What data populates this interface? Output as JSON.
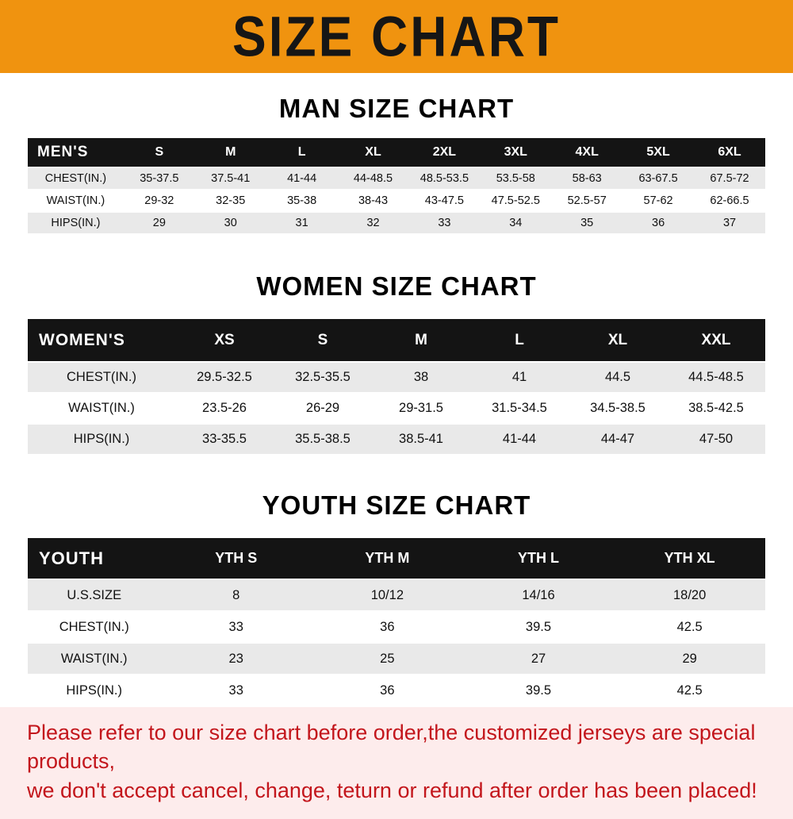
{
  "banner": {
    "title": "SIZE CHART"
  },
  "chart_data": [
    {
      "type": "table",
      "title": "MAN SIZE CHART",
      "columns": [
        "MEN'S",
        "S",
        "M",
        "L",
        "XL",
        "2XL",
        "3XL",
        "4XL",
        "5XL",
        "6XL"
      ],
      "rows": [
        [
          "CHEST(IN.)",
          "35-37.5",
          "37.5-41",
          "41-44",
          "44-48.5",
          "48.5-53.5",
          "53.5-58",
          "58-63",
          "63-67.5",
          "67.5-72"
        ],
        [
          "WAIST(IN.)",
          "29-32",
          "32-35",
          "35-38",
          "38-43",
          "43-47.5",
          "47.5-52.5",
          "52.5-57",
          "57-62",
          "62-66.5"
        ],
        [
          "HIPS(IN.)",
          "29",
          "30",
          "31",
          "32",
          "33",
          "34",
          "35",
          "36",
          "37"
        ]
      ]
    },
    {
      "type": "table",
      "title": "WOMEN SIZE CHART",
      "columns": [
        "WOMEN'S",
        "XS",
        "S",
        "M",
        "L",
        "XL",
        "XXL"
      ],
      "rows": [
        [
          "CHEST(IN.)",
          "29.5-32.5",
          "32.5-35.5",
          "38",
          "41",
          "44.5",
          "44.5-48.5"
        ],
        [
          "WAIST(IN.)",
          "23.5-26",
          "26-29",
          "29-31.5",
          "31.5-34.5",
          "34.5-38.5",
          "38.5-42.5"
        ],
        [
          "HIPS(IN.)",
          "33-35.5",
          "35.5-38.5",
          "38.5-41",
          "41-44",
          "44-47",
          "47-50"
        ]
      ]
    },
    {
      "type": "table",
      "title": "YOUTH SIZE CHART",
      "columns": [
        "YOUTH",
        "YTH S",
        "YTH M",
        "YTH L",
        "YTH XL"
      ],
      "rows": [
        [
          "U.S.SIZE",
          "8",
          "10/12",
          "14/16",
          "18/20"
        ],
        [
          "CHEST(IN.)",
          "33",
          "36",
          "39.5",
          "42.5"
        ],
        [
          "WAIST(IN.)",
          "23",
          "25",
          "27",
          "29"
        ],
        [
          "HIPS(IN.)",
          "33",
          "36",
          "39.5",
          "42.5"
        ]
      ]
    }
  ],
  "footer": {
    "line1": "Please refer to our size chart before order,the customized jerseys are special products,",
    "line2": "we don't accept cancel, change, teturn or refund after order has been placed!"
  },
  "colors": {
    "banner_bg": "#f0930f",
    "banner_text": "#161616",
    "table_header_bg": "#141414",
    "table_header_text": "#ffffff",
    "row_stripe": "#e9e9e9",
    "footer_bg": "#fdecec",
    "footer_text": "#c3161c"
  }
}
